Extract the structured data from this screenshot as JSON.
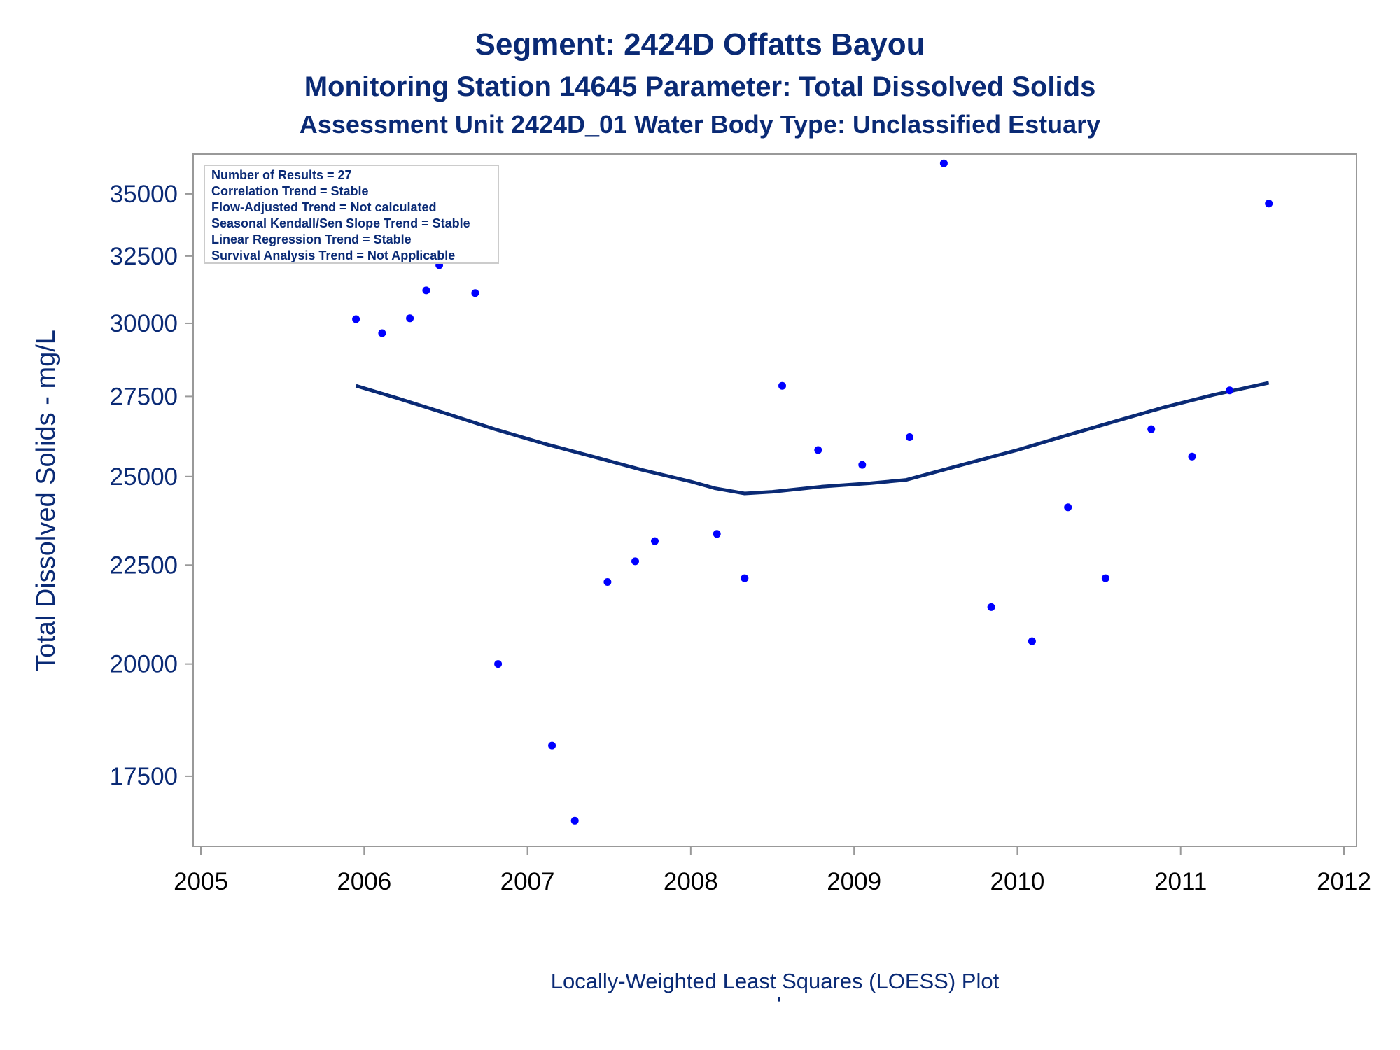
{
  "chart_data": {
    "type": "scatter",
    "title": "Segment: 2424D  Offatts Bayou",
    "subtitle": "Monitoring Station 14645 Parameter: Total Dissolved Solids",
    "subtitle2": "Assessment Unit 2424D_01   Water Body Type: Unclassified Estuary",
    "ylabel": "Total Dissolved Solids - mg/L",
    "xlabel": "",
    "footnote": "Locally-Weighted Least Squares (LOESS) Plot",
    "footnote_mark": "'",
    "xlim": [
      2005,
      2012
    ],
    "ylim": [
      16100,
      36700
    ],
    "y_scale": "log",
    "x_ticks": [
      "2005",
      "2006",
      "2007",
      "2008",
      "2009",
      "2010",
      "2011",
      "2012"
    ],
    "y_ticks": [
      "17500",
      "20000",
      "22500",
      "25000",
      "27500",
      "30000",
      "32500",
      "35000"
    ],
    "grid": false,
    "stats_box": [
      "Number of Results = 27",
      "Correlation Trend = Stable",
      "Flow-Adjusted Trend = Not calculated",
      "Seasonal Kendall/Sen Slope Trend = Stable",
      "Linear Regression Trend = Stable",
      "Survival Analysis Trend = Not Applicable"
    ],
    "series": [
      {
        "kind": "points",
        "color": "#0000ff",
        "points": [
          [
            2005.95,
            30150
          ],
          [
            2006.11,
            29650
          ],
          [
            2006.28,
            30180
          ],
          [
            2006.38,
            31200
          ],
          [
            2006.46,
            32150
          ],
          [
            2006.68,
            31100
          ],
          [
            2006.82,
            20000
          ],
          [
            2007.15,
            18150
          ],
          [
            2007.29,
            16600
          ],
          [
            2007.49,
            22050
          ],
          [
            2007.66,
            22600
          ],
          [
            2007.78,
            23150
          ],
          [
            2008.16,
            23350
          ],
          [
            2008.33,
            22150
          ],
          [
            2008.56,
            27850
          ],
          [
            2008.78,
            25800
          ],
          [
            2009.05,
            25350
          ],
          [
            2009.34,
            26200
          ],
          [
            2009.55,
            36300
          ],
          [
            2009.84,
            21400
          ],
          [
            2010.09,
            20550
          ],
          [
            2010.31,
            24100
          ],
          [
            2010.54,
            22150
          ],
          [
            2010.82,
            26450
          ],
          [
            2011.07,
            25600
          ],
          [
            2011.3,
            27700
          ],
          [
            2011.54,
            34600
          ]
        ]
      },
      {
        "kind": "loess",
        "color": "#0a2a75",
        "points": [
          [
            2005.95,
            27850
          ],
          [
            2006.2,
            27450
          ],
          [
            2006.5,
            26950
          ],
          [
            2006.8,
            26450
          ],
          [
            2007.1,
            26000
          ],
          [
            2007.4,
            25600
          ],
          [
            2007.7,
            25200
          ],
          [
            2008.0,
            24850
          ],
          [
            2008.15,
            24650
          ],
          [
            2008.33,
            24500
          ],
          [
            2008.5,
            24550
          ],
          [
            2008.8,
            24700
          ],
          [
            2009.1,
            24800
          ],
          [
            2009.32,
            24900
          ],
          [
            2009.7,
            25400
          ],
          [
            2010.0,
            25800
          ],
          [
            2010.3,
            26250
          ],
          [
            2010.6,
            26700
          ],
          [
            2010.9,
            27150
          ],
          [
            2011.2,
            27550
          ],
          [
            2011.54,
            27950
          ]
        ]
      }
    ]
  }
}
